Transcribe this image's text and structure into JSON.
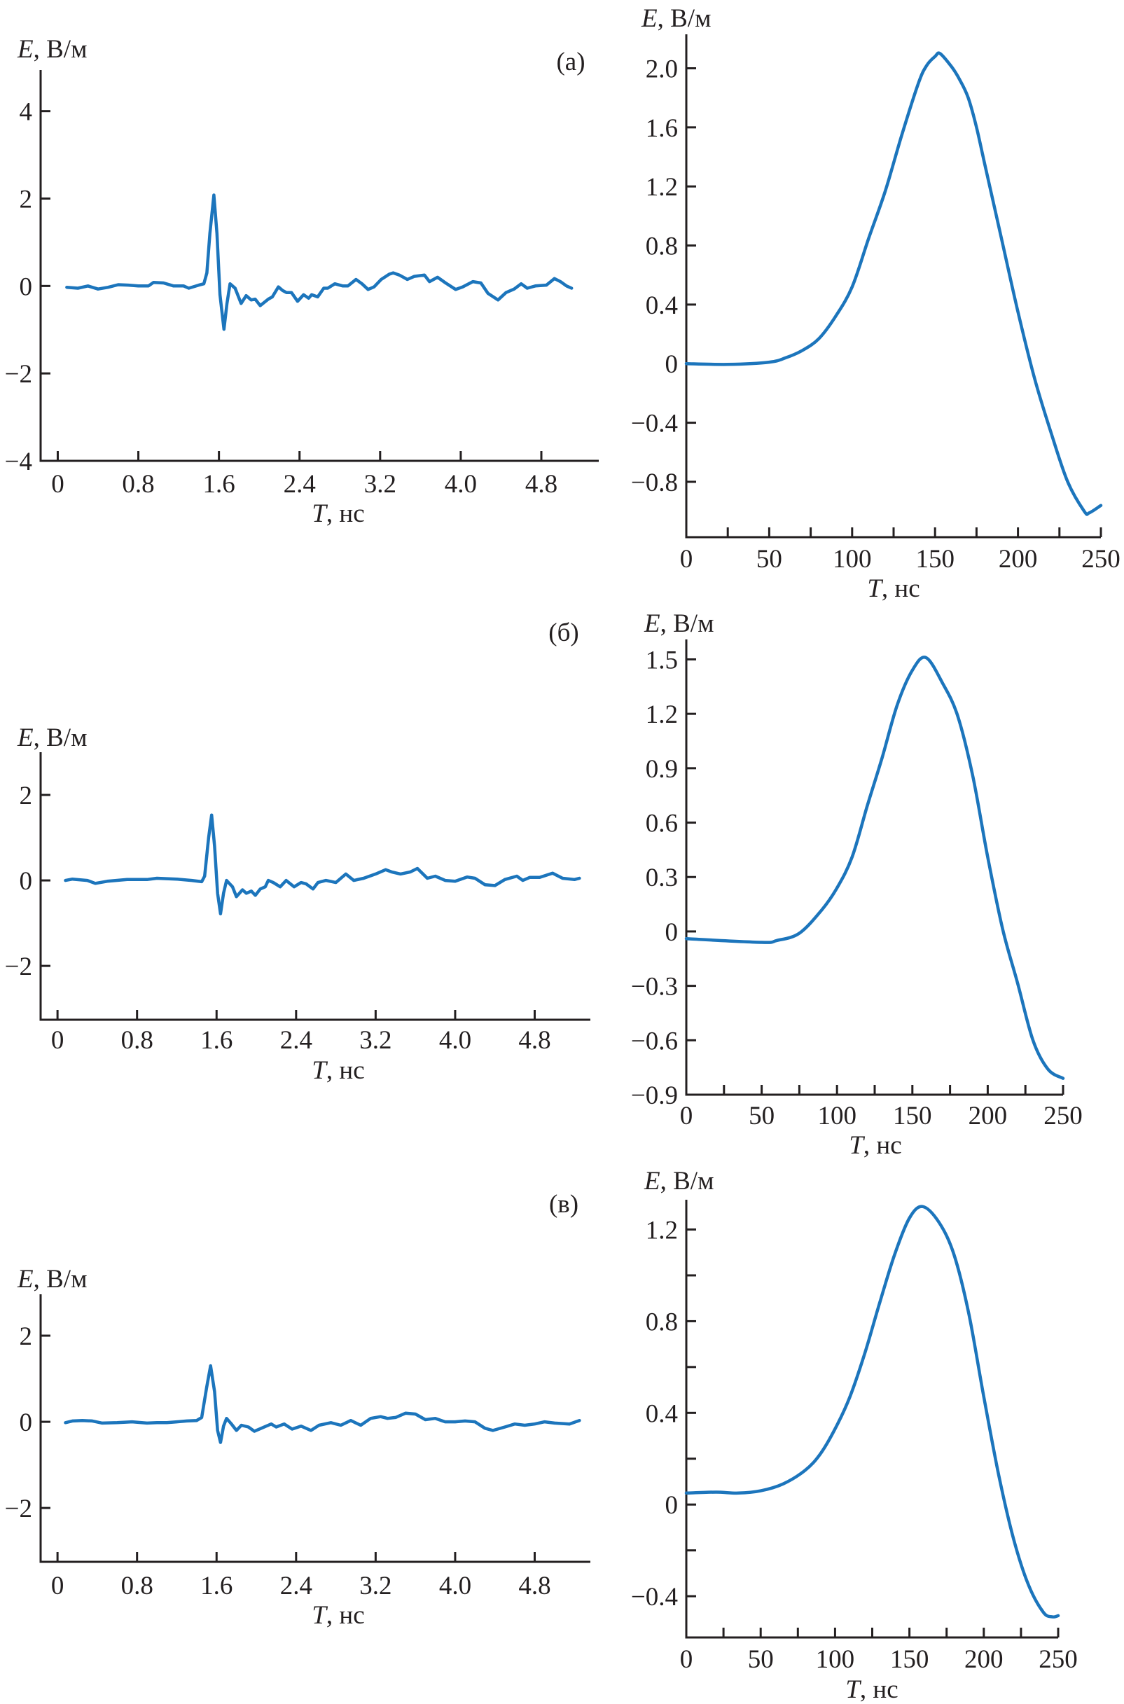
{
  "colors": {
    "curve": "#1c75bc",
    "axis": "#231f20"
  },
  "chart_data": [
    {
      "id": "a-left",
      "type": "line",
      "panel_label": "(а)",
      "ylabel": {
        "symbol": "E",
        "unit": ", В/м"
      },
      "xlabel": {
        "symbol": "T",
        "unit": ", нс"
      },
      "xlim": [
        -0.17,
        5.37
      ],
      "ylim": [
        -4,
        4.94
      ],
      "xticks": [
        0,
        0.8,
        1.6,
        2.4,
        3.2,
        4.0,
        4.8
      ],
      "xtick_labels": [
        "0",
        "0.8",
        "1.6",
        "2.4",
        "3.2",
        "4.0",
        "4.8"
      ],
      "yticks": [
        4,
        2,
        0,
        -2,
        -4
      ],
      "ytick_labels": [
        "4",
        "2",
        "0",
        "−2",
        "−4"
      ],
      "grid": false,
      "series": [
        {
          "x": [
            0.09,
            0.2,
            0.3,
            0.4,
            0.5,
            0.6,
            0.7,
            0.8,
            0.9,
            0.95,
            1.05,
            1.15,
            1.25,
            1.3,
            1.4,
            1.45,
            1.48,
            1.51,
            1.55,
            1.58,
            1.61,
            1.65,
            1.68,
            1.71,
            1.76,
            1.82,
            1.87,
            1.92,
            1.96,
            2.01,
            2.09,
            2.13,
            2.19,
            2.23,
            2.27,
            2.32,
            2.38,
            2.44,
            2.49,
            2.52,
            2.58,
            2.64,
            2.68,
            2.75,
            2.83,
            2.88,
            2.96,
            3.02,
            3.08,
            3.14,
            3.21,
            3.29,
            3.33,
            3.39,
            3.47,
            3.54,
            3.64,
            3.69,
            3.77,
            3.85,
            3.95,
            4.02,
            4.12,
            4.2,
            4.27,
            4.37,
            4.45,
            4.53,
            4.6,
            4.66,
            4.74,
            4.85,
            4.93,
            4.99,
            5.05,
            5.1
          ],
          "y": [
            -0.03,
            -0.05,
            0.0,
            -0.07,
            -0.03,
            0.03,
            0.02,
            0.0,
            0.0,
            0.08,
            0.07,
            0.0,
            0.0,
            -0.05,
            0.02,
            0.05,
            0.3,
            1.2,
            2.08,
            1.2,
            -0.2,
            -0.99,
            -0.4,
            0.05,
            -0.05,
            -0.4,
            -0.22,
            -0.32,
            -0.3,
            -0.45,
            -0.3,
            -0.25,
            -0.02,
            -0.1,
            -0.15,
            -0.15,
            -0.35,
            -0.2,
            -0.28,
            -0.2,
            -0.25,
            -0.05,
            -0.05,
            0.05,
            0.0,
            0.0,
            0.15,
            0.05,
            -0.08,
            -0.02,
            0.15,
            0.27,
            0.3,
            0.25,
            0.15,
            0.22,
            0.25,
            0.1,
            0.2,
            0.07,
            -0.08,
            -0.02,
            0.1,
            0.07,
            -0.17,
            -0.32,
            -0.15,
            -0.07,
            0.05,
            -0.05,
            0.0,
            0.02,
            0.17,
            0.1,
            0.0,
            -0.05
          ]
        }
      ]
    },
    {
      "id": "a-right",
      "type": "line",
      "ylabel": {
        "symbol": "E",
        "unit": ", В/м"
      },
      "xlabel": {
        "symbol": "T",
        "unit": ", нс"
      },
      "xlim": [
        0,
        250
      ],
      "ylim": [
        -1.175,
        2.23
      ],
      "xticks": [
        0,
        25,
        50,
        75,
        100,
        125,
        150,
        175,
        200,
        225,
        250
      ],
      "xtick_labels": [
        "0",
        "",
        "50",
        "",
        "100",
        "",
        "150",
        "",
        "200",
        "",
        "250"
      ],
      "yticks": [
        2.0,
        1.6,
        1.2,
        0.8,
        0.4,
        0,
        -0.4,
        -0.8
      ],
      "ytick_labels": [
        "2.0",
        "1.6",
        "1.2",
        "0.8",
        "0.4",
        "0",
        "−0.4",
        "−0.8"
      ],
      "grid": false,
      "series": [
        {
          "x": [
            0,
            25,
            50,
            60,
            70,
            80,
            90,
            100,
            110,
            120,
            130,
            140,
            145,
            150,
            153,
            160,
            165,
            170,
            175,
            180,
            190,
            200,
            210,
            220,
            230,
            240,
            243,
            250
          ],
          "y": [
            0,
            -0.005,
            0.01,
            0.04,
            0.09,
            0.17,
            0.32,
            0.52,
            0.85,
            1.17,
            1.55,
            1.9,
            2.02,
            2.08,
            2.1,
            2.01,
            1.92,
            1.8,
            1.6,
            1.35,
            0.85,
            0.35,
            -0.1,
            -0.47,
            -0.8,
            -1.0,
            -1.01,
            -0.96
          ]
        }
      ]
    },
    {
      "id": "b-left",
      "type": "line",
      "panel_label": "(б)",
      "ylabel": {
        "symbol": "E",
        "unit": ", В/м"
      },
      "xlabel": {
        "symbol": "T",
        "unit": ", нс"
      },
      "xlim": [
        -0.17,
        5.36
      ],
      "ylim": [
        -3.26,
        3.0
      ],
      "xticks": [
        0,
        0.8,
        1.6,
        2.4,
        3.2,
        4.0,
        4.8
      ],
      "xtick_labels": [
        "0",
        "0.8",
        "1.6",
        "2.4",
        "3.2",
        "4.0",
        "4.8"
      ],
      "yticks": [
        2,
        0,
        -2
      ],
      "ytick_labels": [
        "2",
        "0",
        "−2"
      ],
      "grid": false,
      "series": [
        {
          "x": [
            0.08,
            0.15,
            0.3,
            0.38,
            0.5,
            0.7,
            0.9,
            1.0,
            1.2,
            1.35,
            1.45,
            1.48,
            1.52,
            1.55,
            1.58,
            1.61,
            1.64,
            1.67,
            1.7,
            1.76,
            1.8,
            1.86,
            1.9,
            1.95,
            1.99,
            2.04,
            2.09,
            2.12,
            2.17,
            2.24,
            2.3,
            2.38,
            2.45,
            2.5,
            2.57,
            2.62,
            2.7,
            2.8,
            2.9,
            2.98,
            3.08,
            3.2,
            3.3,
            3.36,
            3.45,
            3.55,
            3.62,
            3.72,
            3.8,
            3.9,
            4.0,
            4.12,
            4.2,
            4.3,
            4.4,
            4.5,
            4.62,
            4.68,
            4.75,
            4.85,
            4.98,
            5.08,
            5.2,
            5.25
          ],
          "y": [
            0.0,
            0.03,
            0.0,
            -0.07,
            -0.02,
            0.02,
            0.02,
            0.05,
            0.03,
            0.0,
            -0.03,
            0.1,
            1.0,
            1.53,
            0.8,
            -0.3,
            -0.78,
            -0.3,
            0.0,
            -0.15,
            -0.38,
            -0.22,
            -0.3,
            -0.25,
            -0.35,
            -0.2,
            -0.15,
            0.0,
            -0.05,
            -0.15,
            0.0,
            -0.15,
            -0.05,
            -0.08,
            -0.2,
            -0.05,
            0.0,
            -0.05,
            0.15,
            0.0,
            0.05,
            0.15,
            0.25,
            0.2,
            0.15,
            0.2,
            0.28,
            0.05,
            0.1,
            0.0,
            -0.02,
            0.08,
            0.05,
            -0.1,
            -0.12,
            0.02,
            0.1,
            0.0,
            0.07,
            0.07,
            0.17,
            0.05,
            0.02,
            0.05
          ]
        }
      ]
    },
    {
      "id": "b-right",
      "type": "line",
      "ylabel": {
        "symbol": "E",
        "unit": ", В/м"
      },
      "xlabel": {
        "symbol": "T",
        "unit": ", нс"
      },
      "xlim": [
        0,
        250
      ],
      "ylim": [
        -0.9,
        1.61
      ],
      "xticks": [
        0,
        25,
        50,
        75,
        100,
        125,
        150,
        175,
        200,
        225,
        250
      ],
      "xtick_labels": [
        "0",
        "",
        "50",
        "",
        "100",
        "",
        "150",
        "",
        "200",
        "",
        "250"
      ],
      "yticks": [
        1.5,
        1.2,
        0.9,
        0.6,
        0.3,
        0,
        -0.3,
        -0.6,
        -0.9
      ],
      "ytick_labels": [
        "1.5",
        "1.2",
        "0.9",
        "0.6",
        "0.3",
        "0",
        "−0.3",
        "−0.6",
        "−0.9"
      ],
      "grid": false,
      "series": [
        {
          "x": [
            0,
            50,
            60,
            75,
            90,
            100,
            110,
            120,
            130,
            140,
            150,
            159,
            170,
            180,
            190,
            200,
            210,
            220,
            230,
            240,
            250
          ],
          "y": [
            -0.04,
            -0.06,
            -0.05,
            -0.01,
            0.12,
            0.24,
            0.41,
            0.69,
            0.96,
            1.25,
            1.44,
            1.51,
            1.37,
            1.19,
            0.86,
            0.41,
            0.01,
            -0.29,
            -0.6,
            -0.76,
            -0.81
          ]
        }
      ]
    },
    {
      "id": "c-left",
      "type": "line",
      "panel_label": "(в)",
      "ylabel": {
        "symbol": "E",
        "unit": ", В/м"
      },
      "xlabel": {
        "symbol": "T",
        "unit": ", нс"
      },
      "xlim": [
        -0.17,
        5.36
      ],
      "ylim": [
        -3.25,
        2.96
      ],
      "xticks": [
        0,
        0.8,
        1.6,
        2.4,
        3.2,
        4.0,
        4.8
      ],
      "xtick_labels": [
        "0",
        "0.8",
        "1.6",
        "2.4",
        "3.2",
        "4.0",
        "4.8"
      ],
      "yticks": [
        2,
        0,
        -2
      ],
      "ytick_labels": [
        "2",
        "0",
        "−2"
      ],
      "grid": false,
      "series": [
        {
          "x": [
            0.08,
            0.15,
            0.25,
            0.35,
            0.45,
            0.6,
            0.75,
            0.9,
            1.0,
            1.1,
            1.2,
            1.3,
            1.4,
            1.45,
            1.5,
            1.54,
            1.58,
            1.61,
            1.64,
            1.67,
            1.7,
            1.75,
            1.8,
            1.85,
            1.92,
            1.98,
            2.05,
            2.15,
            2.2,
            2.28,
            2.36,
            2.45,
            2.55,
            2.63,
            2.75,
            2.85,
            2.95,
            3.05,
            3.15,
            3.25,
            3.32,
            3.4,
            3.5,
            3.6,
            3.7,
            3.8,
            3.9,
            4.0,
            4.1,
            4.2,
            4.3,
            4.38,
            4.5,
            4.6,
            4.7,
            4.8,
            4.9,
            5.0,
            5.15,
            5.25
          ],
          "y": [
            -0.02,
            0.02,
            0.03,
            0.02,
            -0.03,
            -0.02,
            0.0,
            -0.03,
            -0.02,
            -0.02,
            0.0,
            0.02,
            0.03,
            0.1,
            0.8,
            1.3,
            0.7,
            -0.2,
            -0.48,
            -0.1,
            0.08,
            -0.05,
            -0.2,
            -0.08,
            -0.12,
            -0.22,
            -0.15,
            -0.05,
            -0.12,
            -0.05,
            -0.17,
            -0.1,
            -0.2,
            -0.08,
            -0.02,
            -0.08,
            0.03,
            -0.08,
            0.08,
            0.12,
            0.08,
            0.1,
            0.2,
            0.18,
            0.05,
            0.08,
            0.0,
            0.0,
            0.02,
            0.0,
            -0.15,
            -0.2,
            -0.12,
            -0.05,
            -0.08,
            -0.05,
            0.0,
            -0.03,
            -0.05,
            0.03
          ]
        }
      ]
    },
    {
      "id": "c-right",
      "type": "line",
      "ylabel": {
        "symbol": "E",
        "unit": ", В/м"
      },
      "xlabel": {
        "symbol": "T",
        "unit": ", нс"
      },
      "xlim": [
        0,
        250
      ],
      "ylim": [
        -0.58,
        1.33
      ],
      "xticks": [
        0,
        25,
        50,
        75,
        100,
        125,
        150,
        175,
        200,
        225,
        250
      ],
      "xtick_labels": [
        "0",
        "",
        "50",
        "",
        "100",
        "",
        "150",
        "",
        "200",
        "",
        "250"
      ],
      "yticks": [
        1.2,
        1.0,
        0.8,
        0.6,
        0.4,
        0.2,
        0,
        -0.2,
        -0.4
      ],
      "ytick_labels": [
        "1.2",
        "",
        "0.8",
        "",
        "0.4",
        "",
        "0",
        "",
        "−0.4"
      ],
      "grid": false,
      "series": [
        {
          "x": [
            0,
            20,
            35,
            50,
            65,
            80,
            90,
            100,
            110,
            120,
            130,
            140,
            150,
            159,
            170,
            180,
            190,
            200,
            210,
            220,
            230,
            240,
            246,
            250
          ],
          "y": [
            0.05,
            0.054,
            0.05,
            0.06,
            0.09,
            0.15,
            0.22,
            0.33,
            0.47,
            0.66,
            0.88,
            1.09,
            1.25,
            1.3,
            1.23,
            1.09,
            0.83,
            0.47,
            0.13,
            -0.15,
            -0.35,
            -0.47,
            -0.49,
            -0.485
          ]
        }
      ]
    }
  ]
}
